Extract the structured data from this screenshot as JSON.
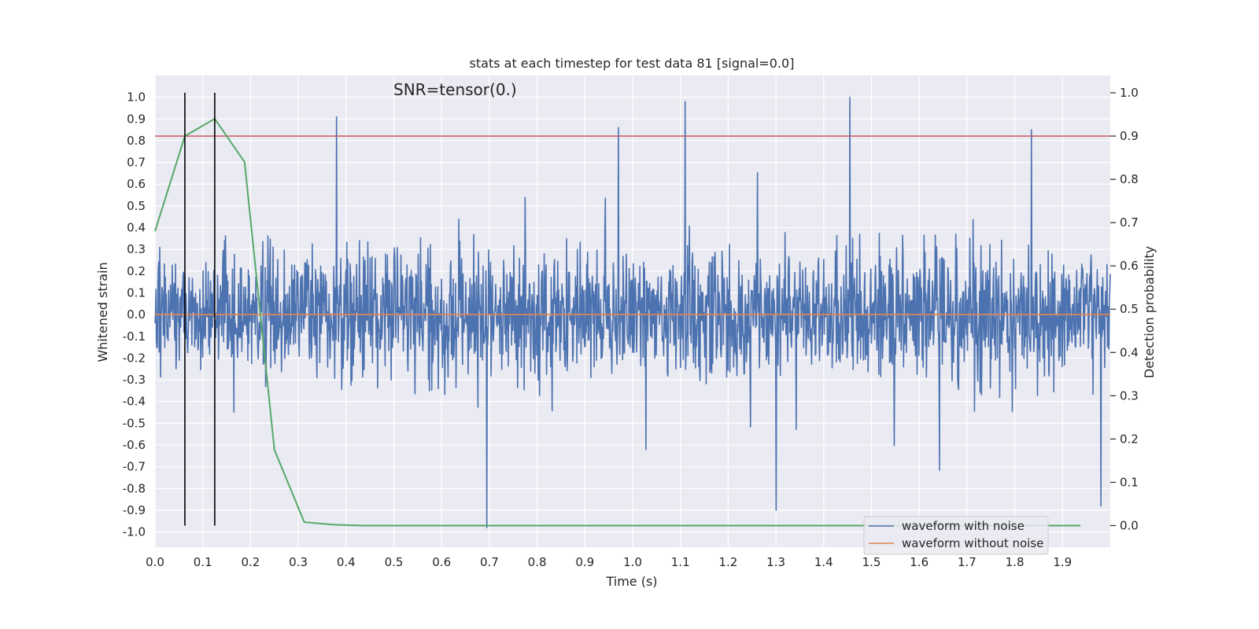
{
  "chart_data": {
    "type": "line",
    "title": "stats at each timestep for test data 81 [signal=0.0]",
    "annotation": "SNR=tensor(0.)",
    "xlabel": "Time (s)",
    "ylabel_left": "Whitened strain",
    "ylabel_right": "Detection probability",
    "xlim": [
      0.0,
      2.0
    ],
    "ylim_left": [
      -1.07,
      1.1
    ],
    "ylim_right": [
      -0.05,
      1.04
    ],
    "x_ticks": [
      "0.0",
      "0.1",
      "0.2",
      "0.3",
      "0.4",
      "0.5",
      "0.6",
      "0.7",
      "0.8",
      "0.9",
      "1.0",
      "1.1",
      "1.2",
      "1.3",
      "1.4",
      "1.5",
      "1.6",
      "1.7",
      "1.8",
      "1.9"
    ],
    "y_left_ticks": [
      "1.0",
      "0.9",
      "0.8",
      "0.7",
      "0.6",
      "0.5",
      "0.4",
      "0.3",
      "0.2",
      "0.1",
      "0.0",
      "-0.1",
      "-0.2",
      "-0.3",
      "-0.4",
      "-0.5",
      "-0.6",
      "-0.7",
      "-0.8",
      "-0.9",
      "-1.0"
    ],
    "y_right_ticks": [
      "1.0",
      "0.9",
      "0.8",
      "0.7",
      "0.6",
      "0.5",
      "0.4",
      "0.3",
      "0.2",
      "0.1",
      "0.0"
    ],
    "grid": true,
    "legend_position": "lower-right",
    "colors": {
      "background": "#eaeaf2",
      "grid": "#ffffff",
      "noise": "#4c72b0",
      "clean": "#dd8452",
      "probability": "#55a868",
      "threshold": "#c44e52",
      "marker": "#000000"
    },
    "series": [
      {
        "name": "waveform with noise",
        "axis": "left",
        "style": "noise-band",
        "x_range": [
          0.0,
          2.0
        ],
        "amplitude_range": [
          -0.98,
          1.0
        ],
        "peaks": [
          {
            "x": 0.38,
            "y": 0.91
          },
          {
            "x": 0.97,
            "y": 0.86
          },
          {
            "x": 1.11,
            "y": 0.98
          },
          {
            "x": 1.455,
            "y": 1.0
          },
          {
            "x": 1.835,
            "y": 0.85
          },
          {
            "x": 0.695,
            "y": -0.98
          },
          {
            "x": 1.3,
            "y": -0.9
          },
          {
            "x": 1.98,
            "y": -0.88
          }
        ]
      },
      {
        "name": "waveform without noise",
        "axis": "left",
        "x": [
          0.0,
          2.0
        ],
        "y": [
          0.0,
          0.0
        ]
      },
      {
        "name": "detection probability",
        "axis": "right",
        "x": [
          0.0,
          0.0625,
          0.125,
          0.1875,
          0.25,
          0.3125,
          0.375,
          0.4375,
          0.5,
          0.75,
          1.0,
          1.25,
          1.5,
          1.75,
          1.9375
        ],
        "y": [
          0.68,
          0.9,
          0.94,
          0.84,
          0.175,
          0.008,
          0.002,
          0.0,
          0.0,
          0.0,
          0.0,
          0.0,
          0.0,
          0.0,
          0.0
        ]
      }
    ],
    "threshold": {
      "axis": "right",
      "y": 0.9
    },
    "markers": {
      "x": [
        0.0625,
        0.125
      ],
      "y_range": [
        0.0,
        1.0
      ]
    },
    "legend": [
      "waveform with noise",
      "waveform without noise"
    ]
  }
}
